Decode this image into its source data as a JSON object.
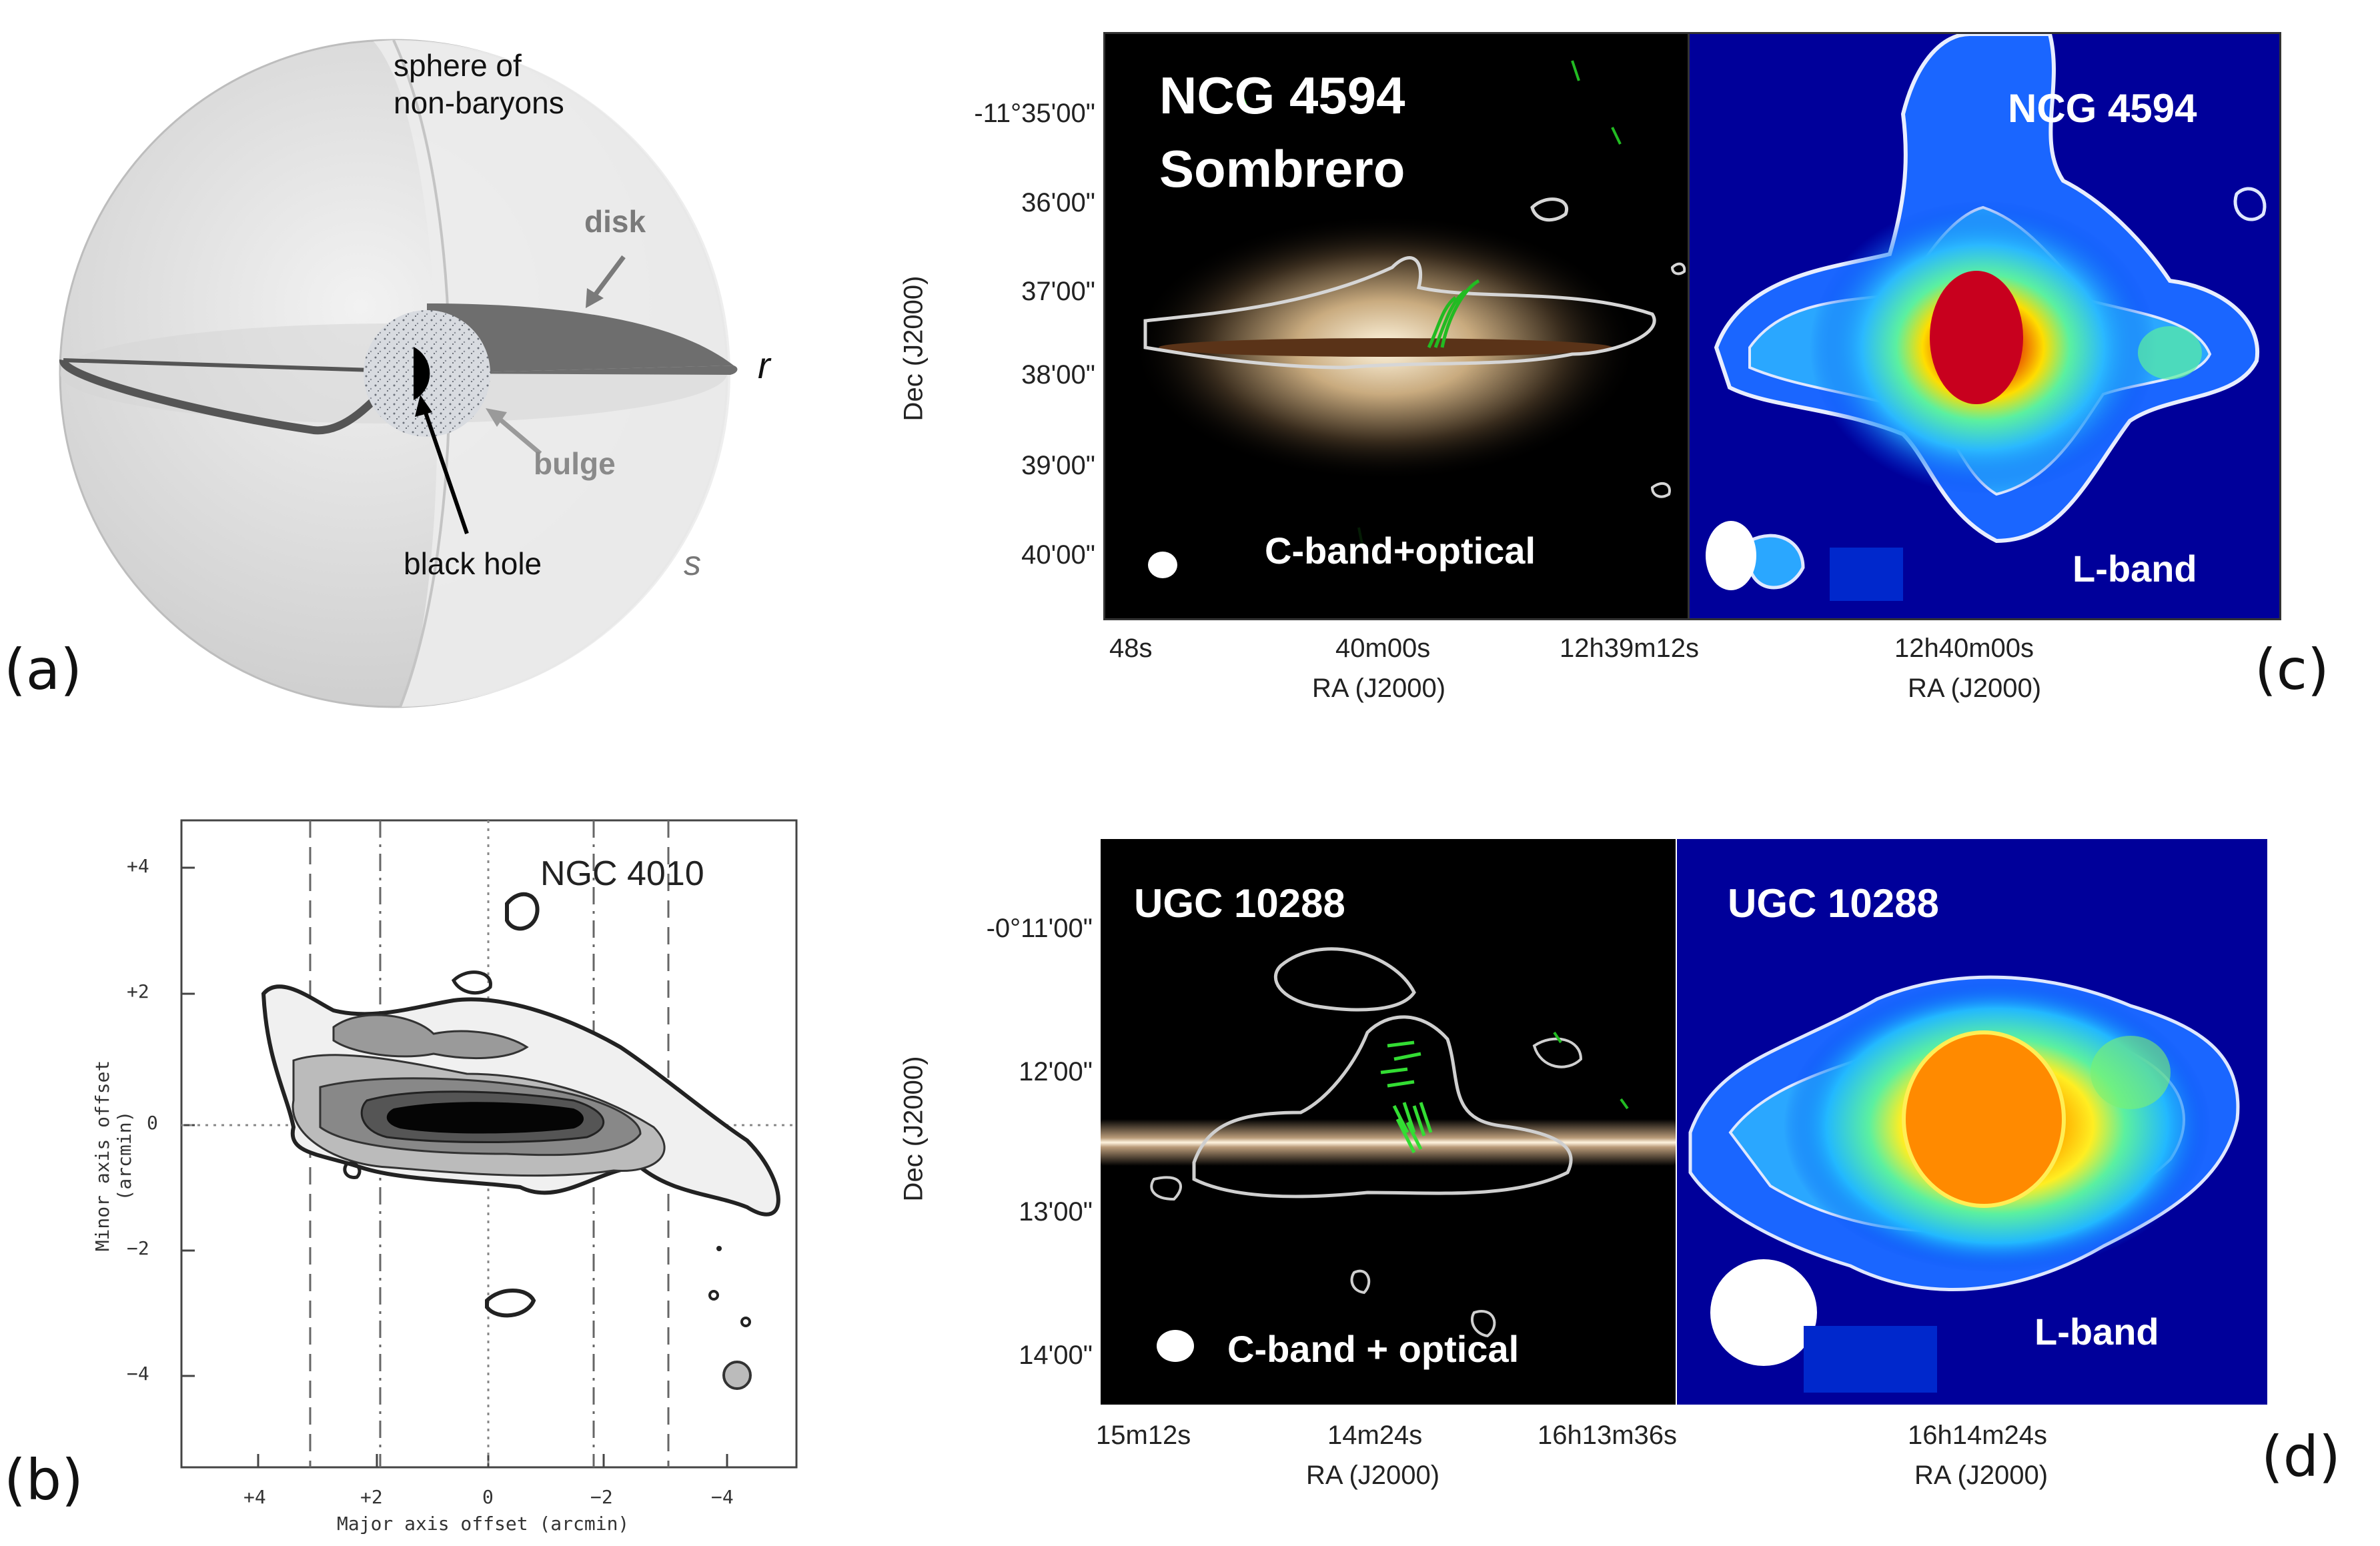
{
  "panel_a": {
    "label": "(a)",
    "sphere_label_line1": "sphere of",
    "sphere_label_line2": "non-baryons",
    "disk_label": "disk",
    "bulge_label": "bulge",
    "black_hole_label": "black hole",
    "r_label": "r",
    "s_label": "s"
  },
  "panel_b": {
    "label": "(b)",
    "title": "NGC 4010",
    "xlabel": "Major axis offset (arcmin)",
    "ylabel": "Minor axis offset (arcmin)",
    "xticks": [
      "+4",
      "+2",
      "0",
      "−2",
      "−4"
    ],
    "yticks": [
      "+4",
      "+2",
      "0",
      "−2",
      "−4"
    ]
  },
  "panel_c": {
    "label": "(c)",
    "left_title_line1": "NCG 4594",
    "left_title_line2": "Sombrero",
    "left_band": "C-band+optical",
    "right_title": "NCG 4594",
    "right_band": "L-band",
    "ylabel": "Dec (J2000)",
    "yticks": [
      "-11°35'00\"",
      "36'00\"",
      "37'00\"",
      "38'00\"",
      "39'00\"",
      "40'00\""
    ],
    "left_xticks": [
      "48s",
      "40m00s",
      "12h39m12s"
    ],
    "right_xticks": [
      "12h40m00s"
    ],
    "xlabel": "RA (J2000)"
  },
  "panel_d": {
    "label": "(d)",
    "left_title": "UGC 10288",
    "left_band": "C-band + optical",
    "right_title": "UGC 10288",
    "right_band": "L-band",
    "ylabel": "Dec (J2000)",
    "yticks": [
      "-0°11'00\"",
      "12'00\"",
      "13'00\"",
      "14'00\""
    ],
    "left_xticks": [
      "15m12s",
      "14m24s",
      "16h13m36s"
    ],
    "right_xticks": [
      "16h14m24s"
    ],
    "xlabel": "RA (J2000)"
  },
  "colors": {
    "sky": "#000000",
    "radio_bg": "#0000aa",
    "contour": "#cfcfe6",
    "vector": "#22bb22"
  }
}
